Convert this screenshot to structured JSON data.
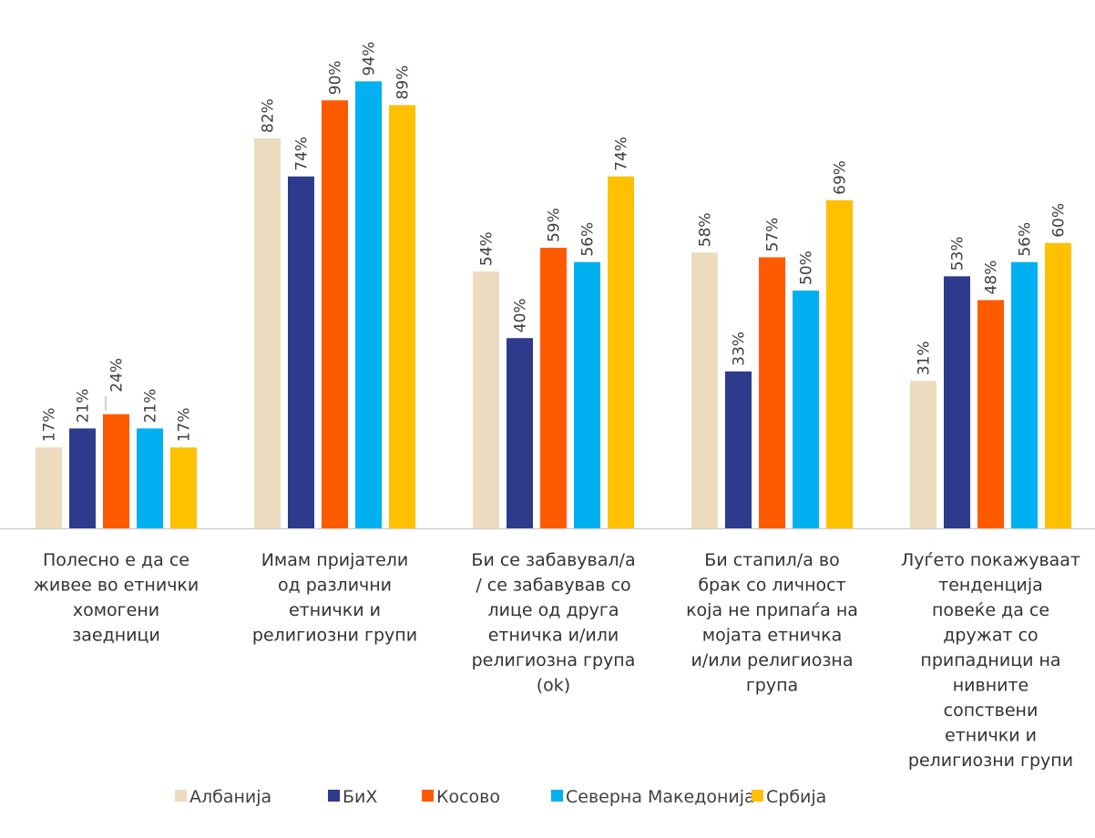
{
  "chart_data": {
    "type": "bar",
    "ylim": [
      0,
      100
    ],
    "grid": false,
    "legend_position": "bottom",
    "categories": [
      [
        "Полесно е да се",
        "живее во етнички",
        "хомогени",
        "заедници"
      ],
      [
        "Имам пријатели",
        "од различни",
        "етнички и",
        "религиозни групи"
      ],
      [
        "Би се забавувал/а",
        "/ се забавував со",
        "лице од друга",
        "етничка и/или",
        "религиозна група",
        "(ok)"
      ],
      [
        "Би стапил/а во",
        "брак со личност",
        "која не припаѓа на",
        "мојата етничка",
        "и/или религиозна",
        "група"
      ],
      [
        "Луѓето покажуваат",
        "тенденција",
        "повеќе да се",
        "дружат со",
        "припадници на",
        "нивните",
        "сопствени",
        "етнички и",
        "религиозни групи"
      ]
    ],
    "series": [
      {
        "name": "Албанија",
        "color": "#EDDBC0",
        "values": [
          17,
          82,
          54,
          58,
          31
        ],
        "labels": [
          "17%",
          "82%",
          "54%",
          "58%",
          "31%"
        ]
      },
      {
        "name": "БиХ",
        "color": "#2E3A8C",
        "values": [
          21,
          74,
          40,
          33,
          53
        ],
        "labels": [
          "21%",
          "74%",
          "40%",
          "33%",
          "53%"
        ]
      },
      {
        "name": "Косово",
        "color": "#FF5A00",
        "values": [
          24,
          90,
          59,
          57,
          48
        ],
        "labels": [
          "24%",
          "90%",
          "59%",
          "57%",
          "48%"
        ]
      },
      {
        "name": "Северна Македонија",
        "color": "#00B0F0",
        "values": [
          21,
          94,
          56,
          50,
          56
        ],
        "labels": [
          "21%",
          "94%",
          "56%",
          "50%",
          "56%"
        ]
      },
      {
        "name": "Србија",
        "color": "#FFC000",
        "values": [
          17,
          89,
          74,
          69,
          60
        ],
        "labels": [
          "17%",
          "89%",
          "74%",
          "69%",
          "60%"
        ]
      }
    ]
  }
}
